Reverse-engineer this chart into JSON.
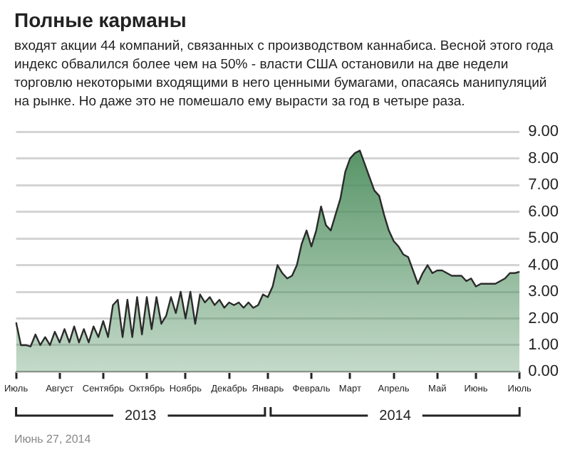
{
  "chart_data": {
    "type": "area",
    "title": "Полные карманы",
    "subtitle": "входят акции 44 компаний, связанных с производством каннабиса. Весной этого года индекс обвалился более чем на 50% - власти США остановили на две недели торговлю некоторыми входящими в него ценными бумагами, опасаясь манипуляций на рынке. Но даже это не помешало ему вырасти за год в четыре раза.",
    "annotations": [
      "2013",
      "2014",
      "Июнь 27, 2014"
    ],
    "categories": [
      "Июль",
      null,
      null,
      null,
      null,
      null,
      null,
      null,
      null,
      "Август",
      null,
      null,
      null,
      null,
      null,
      null,
      null,
      null,
      "Сентябрь",
      null,
      null,
      null,
      null,
      null,
      null,
      null,
      null,
      "Октябрь",
      null,
      null,
      null,
      null,
      null,
      null,
      null,
      "Ноябрь",
      null,
      null,
      null,
      null,
      null,
      null,
      null,
      null,
      "Декабрь",
      null,
      null,
      null,
      null,
      null,
      null,
      null,
      "Январь",
      null,
      null,
      null,
      null,
      null,
      null,
      null,
      null,
      "Февраль",
      null,
      null,
      null,
      null,
      null,
      null,
      null,
      "Март",
      null,
      null,
      null,
      null,
      null,
      null,
      null,
      null,
      "Апрель",
      null,
      null,
      null,
      null,
      null,
      null,
      null,
      null,
      "Май",
      null,
      null,
      null,
      null,
      null,
      null,
      null,
      "Июнь",
      null,
      null,
      null,
      null,
      null,
      null,
      null,
      null,
      "Июль"
    ],
    "series": [
      {
        "color": "#4f8f5f",
        "values": [
          1.85,
          1.0,
          1.0,
          0.95,
          1.4,
          1.0,
          1.3,
          1.0,
          1.5,
          1.1,
          1.6,
          1.1,
          1.7,
          1.1,
          1.6,
          1.1,
          1.7,
          1.3,
          1.9,
          1.3,
          2.5,
          2.7,
          1.3,
          2.7,
          1.3,
          2.8,
          1.4,
          2.8,
          1.6,
          2.8,
          1.8,
          2.1,
          2.8,
          2.2,
          3.0,
          2.0,
          3.0,
          1.8,
          2.9,
          2.6,
          2.8,
          2.5,
          2.7,
          2.4,
          2.6,
          2.5,
          2.6,
          2.4,
          2.6,
          2.4,
          2.5,
          2.9,
          2.8,
          3.2,
          4.0,
          3.7,
          3.5,
          3.6,
          4.0,
          4.8,
          5.3,
          4.7,
          5.3,
          6.2,
          5.5,
          5.3,
          5.9,
          6.5,
          7.5,
          8.0,
          8.2,
          8.3,
          7.8,
          7.3,
          6.8,
          6.6,
          5.9,
          5.3,
          4.9,
          4.7,
          4.4,
          4.3,
          3.8,
          3.3,
          3.7,
          4.0,
          3.7,
          3.8,
          3.8,
          3.7,
          3.6,
          3.6,
          3.6,
          3.4,
          3.5,
          3.2,
          3.3,
          3.3,
          3.3,
          3.3,
          3.4,
          3.5,
          3.7,
          3.7,
          3.75
        ]
      }
    ],
    "ylim": [
      0,
      9
    ],
    "yticks": [
      {
        "value": 0,
        "label": "0.00"
      },
      {
        "value": 1,
        "label": "1.00"
      },
      {
        "value": 2,
        "label": "2.00"
      },
      {
        "value": 3,
        "label": "3.00"
      },
      {
        "value": 4,
        "label": "4.00"
      },
      {
        "value": 5,
        "label": "5.00"
      },
      {
        "value": 6,
        "label": "6.00"
      },
      {
        "value": 7,
        "label": "7.00"
      },
      {
        "value": 8,
        "label": "8.00"
      },
      {
        "value": 9,
        "label": "9.00"
      }
    ],
    "grid": "y",
    "legend": false,
    "marker": "none",
    "line_style": "solid"
  }
}
